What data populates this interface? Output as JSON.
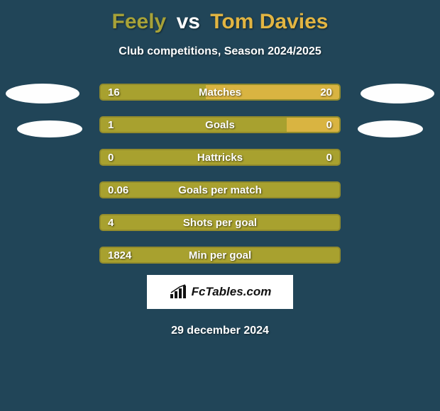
{
  "header": {
    "player1": "Feely",
    "vs": "vs",
    "player2": "Tom Davies",
    "player1_color": "#a7a238",
    "player2_color": "#e2b542",
    "subtitle": "Club competitions, Season 2024/2025"
  },
  "chart": {
    "bar_base_color": "#a8a12f",
    "bar_alt_color": "#d9b441",
    "border_color": "#938c2c",
    "rows": [
      {
        "label": "Matches",
        "left": "16",
        "right": "20",
        "left_pct": 44,
        "right_pct": 56,
        "show_right": true
      },
      {
        "label": "Goals",
        "left": "1",
        "right": "0",
        "left_pct": 78,
        "right_pct": 22,
        "show_right": true
      },
      {
        "label": "Hattricks",
        "left": "0",
        "right": "0",
        "left_pct": 100,
        "right_pct": 0,
        "show_right": true
      },
      {
        "label": "Goals per match",
        "left": "0.06",
        "right": "",
        "left_pct": 100,
        "right_pct": 0,
        "show_right": false
      },
      {
        "label": "Shots per goal",
        "left": "4",
        "right": "",
        "left_pct": 100,
        "right_pct": 0,
        "show_right": false
      },
      {
        "label": "Min per goal",
        "left": "1824",
        "right": "",
        "left_pct": 100,
        "right_pct": 0,
        "show_right": false
      }
    ]
  },
  "footer": {
    "logo_text": "FcTables.com",
    "date": "29 december 2024"
  },
  "style": {
    "background": "#214558",
    "text_color": "#ffffff"
  }
}
